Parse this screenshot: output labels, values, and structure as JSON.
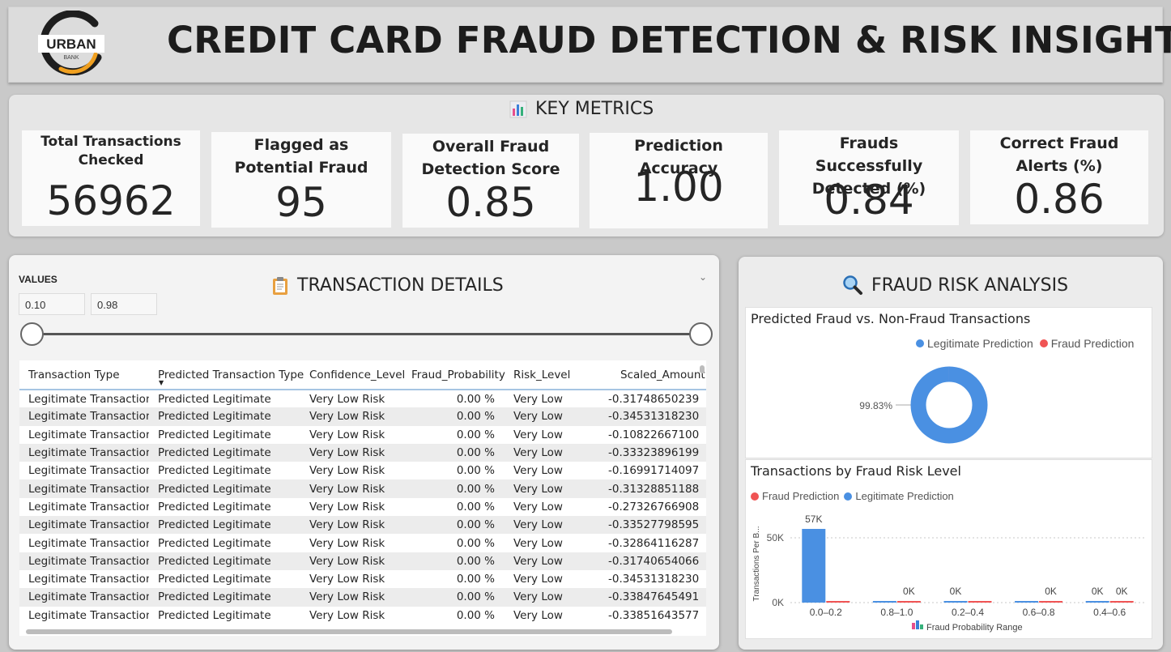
{
  "header": {
    "title": "CREDIT CARD FRAUD DETECTION & RISK INSIGHTS",
    "logo_text": "URBAN",
    "logo_subtext": "BANK"
  },
  "key_metrics": {
    "title": "KEY METRICS",
    "icon": "bar-chart-icon",
    "cards": [
      {
        "label": "Total Transactions Checked",
        "value": "56962"
      },
      {
        "label": "Flagged as Potential Fraud",
        "value": "95"
      },
      {
        "label": "Overall Fraud Detection Score",
        "value": "0.85"
      },
      {
        "label": "Prediction Accuracy",
        "value": "1.00"
      },
      {
        "label": "Frauds Successfully Detected (%)",
        "value": "0.84"
      },
      {
        "label": "Correct Fraud Alerts (%)",
        "value": "0.86"
      }
    ]
  },
  "transaction_details": {
    "title": "TRANSACTION DETAILS",
    "icon": "clipboard-icon",
    "slicer": {
      "label": "VALUES",
      "min": "0.10",
      "max": "0.98"
    },
    "columns": [
      "Transaction Type",
      "Predicted Transaction Type",
      "Confidence_Level",
      "Fraud_Probability",
      "Risk_Level",
      "Scaled_Amount"
    ],
    "rows": [
      [
        "Legitimate Transaction",
        "Predicted Legitimate",
        "Very Low Risk",
        "0.00 %",
        "Very Low",
        "-0.31748650239"
      ],
      [
        "Legitimate Transaction",
        "Predicted Legitimate",
        "Very Low Risk",
        "0.00 %",
        "Very Low",
        "-0.34531318230"
      ],
      [
        "Legitimate Transaction",
        "Predicted Legitimate",
        "Very Low Risk",
        "0.00 %",
        "Very Low",
        "-0.10822667100"
      ],
      [
        "Legitimate Transaction",
        "Predicted Legitimate",
        "Very Low Risk",
        "0.00 %",
        "Very Low",
        "-0.33323896199"
      ],
      [
        "Legitimate Transaction",
        "Predicted Legitimate",
        "Very Low Risk",
        "0.00 %",
        "Very Low",
        "-0.16991714097"
      ],
      [
        "Legitimate Transaction",
        "Predicted Legitimate",
        "Very Low Risk",
        "0.00 %",
        "Very Low",
        "-0.31328851188"
      ],
      [
        "Legitimate Transaction",
        "Predicted Legitimate",
        "Very Low Risk",
        "0.00 %",
        "Very Low",
        "-0.27326766908"
      ],
      [
        "Legitimate Transaction",
        "Predicted Legitimate",
        "Very Low Risk",
        "0.00 %",
        "Very Low",
        "-0.33527798595"
      ],
      [
        "Legitimate Transaction",
        "Predicted Legitimate",
        "Very Low Risk",
        "0.00 %",
        "Very Low",
        "-0.32864116287"
      ],
      [
        "Legitimate Transaction",
        "Predicted Legitimate",
        "Very Low Risk",
        "0.00 %",
        "Very Low",
        "-0.31740654066"
      ],
      [
        "Legitimate Transaction",
        "Predicted Legitimate",
        "Very Low Risk",
        "0.00 %",
        "Very Low",
        "-0.34531318230"
      ],
      [
        "Legitimate Transaction",
        "Predicted Legitimate",
        "Very Low Risk",
        "0.00 %",
        "Very Low",
        "-0.33847645491"
      ],
      [
        "Legitimate Transaction",
        "Predicted Legitimate",
        "Very Low Risk",
        "0.00 %",
        "Very Low",
        "-0.33851643577"
      ]
    ]
  },
  "fraud_risk": {
    "title": "FRAUD RISK ANALYSIS",
    "icon": "magnifier-icon"
  },
  "colors": {
    "legitimate": "#4a90e2",
    "fraud": "#f05454"
  },
  "chart_data": [
    {
      "type": "pie",
      "title": "Predicted Fraud vs. Non-Fraud Transactions",
      "legend": [
        "Legitimate Prediction",
        "Fraud Prediction"
      ],
      "legend_placement": "top-right",
      "slices": [
        {
          "name": "Legitimate Prediction",
          "percent": 99.83,
          "label": "99.83%"
        },
        {
          "name": "Fraud Prediction",
          "percent": 0.17,
          "label": ""
        }
      ]
    },
    {
      "type": "bar",
      "title": "Transactions by Fraud Risk Level",
      "legend": [
        "Fraud Prediction",
        "Legitimate Prediction"
      ],
      "legend_placement": "top-left",
      "xlabel": "Fraud Probability Range",
      "ylabel": "Transactions Per B...",
      "categories": [
        "0.0–0.2",
        "0.8–1.0",
        "0.2–0.4",
        "0.6–0.8",
        "0.4–0.6"
      ],
      "ticks": [
        "0K",
        "50K"
      ],
      "ylim": [
        0,
        60000
      ],
      "grid": true,
      "series": [
        {
          "name": "Legitimate Prediction",
          "values": [
            56867,
            0,
            0,
            0,
            0
          ],
          "labels": [
            "57K",
            "",
            "0K",
            "",
            "0K"
          ]
        },
        {
          "name": "Fraud Prediction",
          "values": [
            0,
            0,
            0,
            0,
            0
          ],
          "labels": [
            "",
            "0K",
            "",
            "0K",
            "0K"
          ]
        }
      ]
    }
  ]
}
